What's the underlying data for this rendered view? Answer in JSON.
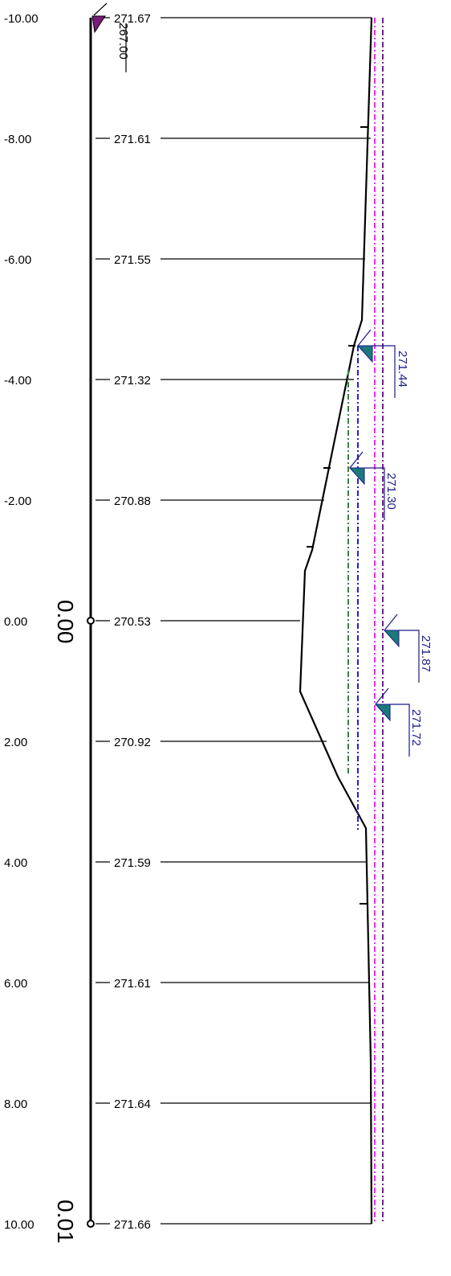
{
  "stations": [
    {
      "offset": "-10.00",
      "elevation": "271.67"
    },
    {
      "offset": "-8.00",
      "elevation": "271.61"
    },
    {
      "offset": "-6.00",
      "elevation": "271.55"
    },
    {
      "offset": "-4.00",
      "elevation": "271.32"
    },
    {
      "offset": "-2.00",
      "elevation": "270.88"
    },
    {
      "offset": "0.00",
      "elevation": "270.53"
    },
    {
      "offset": "2.00",
      "elevation": "270.92"
    },
    {
      "offset": "4.00",
      "elevation": "271.59"
    },
    {
      "offset": "6.00",
      "elevation": "271.61"
    },
    {
      "offset": "8.00",
      "elevation": "271.64"
    },
    {
      "offset": "10.00",
      "elevation": "271.66"
    }
  ],
  "datum_label": "267.00",
  "axis_labels": {
    "zero": "0.00",
    "end": "0.01"
  },
  "water_levels": [
    {
      "label": "271.44",
      "color": "#1a1a8c"
    },
    {
      "label": "271.30",
      "color": "#1a1a8c"
    },
    {
      "label": "271.87",
      "color": "#1a1a8c"
    },
    {
      "label": "271.72",
      "color": "#1a1a8c"
    }
  ],
  "colors": {
    "profile": "#000000",
    "datum_marker": "#7a1a7a",
    "water_marker": "#1a7a7a",
    "line_green": "#2e8b2e",
    "line_blue": "#2222cc",
    "line_magenta": "#ff22ff",
    "line_purple": "#7a1a9a"
  }
}
